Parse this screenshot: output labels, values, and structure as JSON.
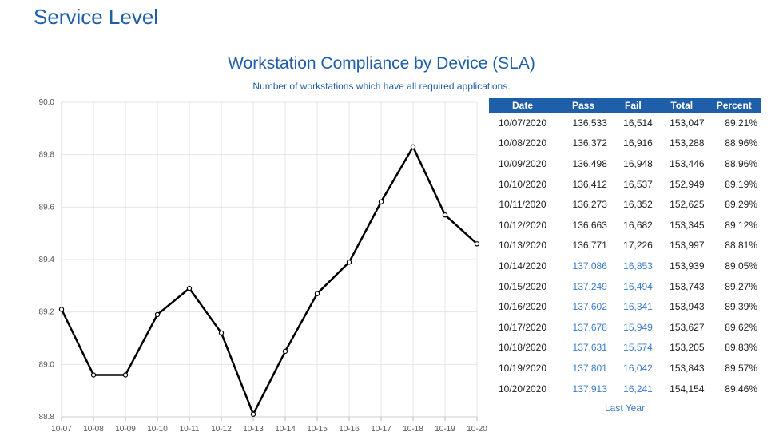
{
  "page": {
    "title": "Service Level"
  },
  "chart_data": {
    "type": "line",
    "title": "Workstation Compliance by Device (SLA)",
    "subtitle": "Number of workstations which have all required applications.",
    "categories": [
      "10-07",
      "10-08",
      "10-09",
      "10-10",
      "10-11",
      "10-12",
      "10-13",
      "10-14",
      "10-15",
      "10-16",
      "10-17",
      "10-18",
      "10-19",
      "10-20"
    ],
    "values": [
      89.21,
      88.96,
      88.96,
      89.19,
      89.29,
      89.12,
      88.81,
      89.05,
      89.27,
      89.39,
      89.62,
      89.83,
      89.57,
      89.46
    ],
    "ylim": [
      88.8,
      90.0
    ],
    "yticks": [
      "88.8",
      "89.0",
      "89.2",
      "89.4",
      "89.6",
      "89.8",
      "90.0"
    ],
    "grid": true,
    "line_color": "#000000"
  },
  "table": {
    "headers": [
      "Date",
      "Pass",
      "Fail",
      "Total",
      "Percent"
    ],
    "rows": [
      {
        "date": "10/07/2020",
        "pass": "136,533",
        "fail": "16,514",
        "total": "153,047",
        "percent": "89.21%",
        "link": false
      },
      {
        "date": "10/08/2020",
        "pass": "136,372",
        "fail": "16,916",
        "total": "153,288",
        "percent": "88.96%",
        "link": false
      },
      {
        "date": "10/09/2020",
        "pass": "136,498",
        "fail": "16,948",
        "total": "153,446",
        "percent": "88.96%",
        "link": false
      },
      {
        "date": "10/10/2020",
        "pass": "136,412",
        "fail": "16,537",
        "total": "152,949",
        "percent": "89.19%",
        "link": false
      },
      {
        "date": "10/11/2020",
        "pass": "136,273",
        "fail": "16,352",
        "total": "152,625",
        "percent": "89.29%",
        "link": false
      },
      {
        "date": "10/12/2020",
        "pass": "136,663",
        "fail": "16,682",
        "total": "153,345",
        "percent": "89.12%",
        "link": false
      },
      {
        "date": "10/13/2020",
        "pass": "136,771",
        "fail": "17,226",
        "total": "153,997",
        "percent": "88.81%",
        "link": false
      },
      {
        "date": "10/14/2020",
        "pass": "137,086",
        "fail": "16,853",
        "total": "153,939",
        "percent": "89.05%",
        "link": true
      },
      {
        "date": "10/15/2020",
        "pass": "137,249",
        "fail": "16,494",
        "total": "153,743",
        "percent": "89.27%",
        "link": true
      },
      {
        "date": "10/16/2020",
        "pass": "137,602",
        "fail": "16,341",
        "total": "153,943",
        "percent": "89.39%",
        "link": true
      },
      {
        "date": "10/17/2020",
        "pass": "137,678",
        "fail": "15,949",
        "total": "153,627",
        "percent": "89.62%",
        "link": true
      },
      {
        "date": "10/18/2020",
        "pass": "137,631",
        "fail": "15,574",
        "total": "153,205",
        "percent": "89.83%",
        "link": true
      },
      {
        "date": "10/19/2020",
        "pass": "137,801",
        "fail": "16,042",
        "total": "153,843",
        "percent": "89.57%",
        "link": true
      },
      {
        "date": "10/20/2020",
        "pass": "137,913",
        "fail": "16,241",
        "total": "154,154",
        "percent": "89.46%",
        "link": true
      }
    ],
    "footer_link": "Last Year"
  }
}
